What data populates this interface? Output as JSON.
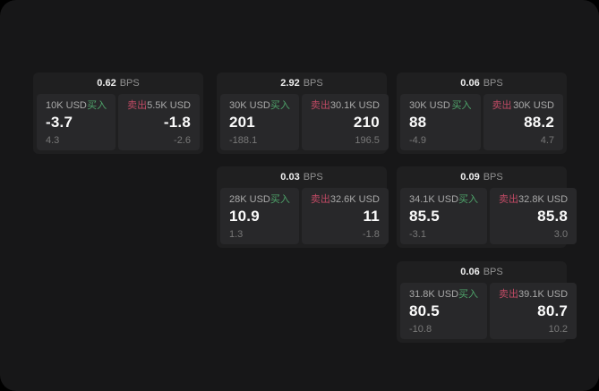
{
  "labels": {
    "bps_unit": "BPS",
    "buy_side": "买入",
    "sell_side": "卖出"
  },
  "colors": {
    "screen-bg": "#171718",
    "card-bg": "#1f1f20",
    "panel-bg": "#28282a",
    "buy": "#4ea36a",
    "sell": "#bf4a64",
    "value": "#fafafa",
    "muted": "#a9a9a9",
    "faint": "#787878"
  },
  "cards": [
    {
      "bps": "0.62",
      "grid": {
        "row": 1,
        "col": 1
      },
      "buy": {
        "amount": "10K USD",
        "price": "-3.7",
        "sub": "4.3"
      },
      "sell": {
        "amount": "5.5K USD",
        "price": "-1.8",
        "sub": "-2.6"
      }
    },
    {
      "bps": "2.92",
      "grid": {
        "row": 1,
        "col": 2
      },
      "buy": {
        "amount": "30K USD",
        "price": "201",
        "sub": "-188.1"
      },
      "sell": {
        "amount": "30.1K USD",
        "price": "210",
        "sub": "196.5"
      }
    },
    {
      "bps": "0.06",
      "grid": {
        "row": 1,
        "col": 3
      },
      "buy": {
        "amount": "30K USD",
        "price": "88",
        "sub": "-4.9"
      },
      "sell": {
        "amount": "30K USD",
        "price": "88.2",
        "sub": "4.7"
      }
    },
    {
      "bps": "0.03",
      "grid": {
        "row": 2,
        "col": 2
      },
      "buy": {
        "amount": "28K USD",
        "price": "10.9",
        "sub": "1.3"
      },
      "sell": {
        "amount": "32.6K USD",
        "price": "11",
        "sub": "-1.8"
      }
    },
    {
      "bps": "0.09",
      "grid": {
        "row": 2,
        "col": 3
      },
      "buy": {
        "amount": "34.1K USD",
        "price": "85.5",
        "sub": "-3.1"
      },
      "sell": {
        "amount": "32.8K USD",
        "price": "85.8",
        "sub": "3.0"
      }
    },
    {
      "bps": "0.06",
      "grid": {
        "row": 3,
        "col": 3
      },
      "buy": {
        "amount": "31.8K USD",
        "price": "80.5",
        "sub": "-10.8"
      },
      "sell": {
        "amount": "39.1K USD",
        "price": "80.7",
        "sub": "10.2"
      }
    }
  ]
}
